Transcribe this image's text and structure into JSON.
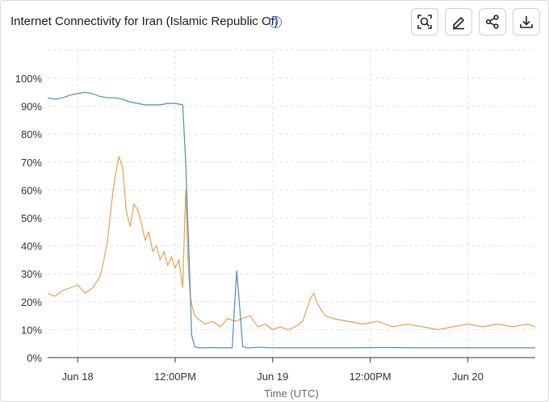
{
  "header": {
    "title": "Internet Connectivity for Iran (Islamic Republic Of)",
    "help_symbol": "?",
    "toolbar": [
      "zoom-icon",
      "edit-icon",
      "share-icon",
      "download-icon"
    ]
  },
  "chart_data": {
    "type": "line",
    "title": "Internet Connectivity for Iran (Islamic Republic Of)",
    "xlabel": "Time (UTC)",
    "ylabel": "",
    "x_unit": "hours since Jun 17 20:00 UTC",
    "xlim": [
      0,
      65
    ],
    "ylim": [
      0,
      100
    ],
    "x_ticks": [
      {
        "x": 4,
        "label": "Jun 18"
      },
      {
        "x": 17,
        "label": "12:00PM"
      },
      {
        "x": 30,
        "label": "Jun 19"
      },
      {
        "x": 43,
        "label": "12:00PM"
      },
      {
        "x": 56,
        "label": "Jun 20"
      }
    ],
    "y_ticks": [
      {
        "y": 0,
        "label": "0%"
      },
      {
        "y": 10,
        "label": "10%"
      },
      {
        "y": 20,
        "label": "20%"
      },
      {
        "y": 30,
        "label": "30%"
      },
      {
        "y": 40,
        "label": "40%"
      },
      {
        "y": 50,
        "label": "50%"
      },
      {
        "y": 60,
        "label": "60%"
      },
      {
        "y": 70,
        "label": "70%"
      },
      {
        "y": 80,
        "label": "80%"
      },
      {
        "y": 90,
        "label": "90%"
      },
      {
        "y": 100,
        "label": "100%"
      }
    ],
    "grid": true,
    "series": [
      {
        "name": "Blue series",
        "color": "#4a8fb8",
        "x": [
          0,
          1,
          2,
          3,
          4,
          5,
          6,
          7,
          8,
          9,
          10,
          11,
          12,
          13,
          14,
          15,
          16,
          17,
          18,
          18.4,
          18.8,
          19.2,
          19.6,
          20,
          21,
          22,
          23,
          24,
          24.6,
          24.9,
          25.2,
          25.6,
          26,
          26.5,
          27,
          28,
          30,
          35,
          40,
          45,
          50,
          55,
          60,
          65
        ],
        "y": [
          93,
          92.5,
          93,
          94,
          94.5,
          95,
          94.5,
          93.5,
          93,
          93,
          92.5,
          91.5,
          91,
          90.5,
          90.5,
          90.5,
          91,
          91,
          90.5,
          70,
          40,
          8,
          4,
          3.5,
          3.5,
          3.6,
          3.5,
          3.5,
          3.5,
          18,
          31,
          18,
          4,
          3.5,
          3.5,
          3.7,
          3.5,
          3.5,
          3.5,
          3.6,
          3.5,
          3.5,
          3.5,
          3.5
        ]
      },
      {
        "name": "Orange series",
        "color": "#e8a04e",
        "x": [
          0,
          1,
          2,
          3,
          4,
          5,
          6,
          7,
          7.5,
          8,
          8.5,
          9,
          9.5,
          10,
          10.5,
          11,
          11.5,
          12,
          12.5,
          13,
          13.5,
          14,
          14.5,
          15,
          15.5,
          16,
          16.5,
          17,
          17.5,
          18,
          18.4,
          18.7,
          19,
          19.3,
          19.6,
          20,
          21,
          22,
          23,
          24,
          25,
          26,
          27,
          28,
          29,
          30,
          31,
          32,
          33,
          34,
          34.5,
          35,
          35.5,
          36,
          37,
          38,
          40,
          42,
          44,
          46,
          48,
          50,
          52,
          54,
          56,
          58,
          60,
          62,
          64,
          65
        ],
        "y": [
          23,
          22,
          24,
          25,
          26,
          23,
          25,
          29,
          35,
          42,
          55,
          65,
          72,
          68,
          52,
          47,
          55,
          53,
          48,
          42,
          45,
          38,
          40,
          35,
          38,
          33,
          36,
          32,
          35,
          25,
          60,
          35,
          22,
          18,
          15,
          14,
          12,
          13,
          11,
          14,
          13,
          14,
          15,
          11,
          12,
          10,
          11,
          10,
          11,
          13,
          17,
          21,
          23,
          19,
          15,
          14,
          13,
          12,
          13,
          11,
          12,
          11,
          10,
          11,
          12,
          11,
          12,
          11,
          12,
          11
        ]
      }
    ]
  }
}
